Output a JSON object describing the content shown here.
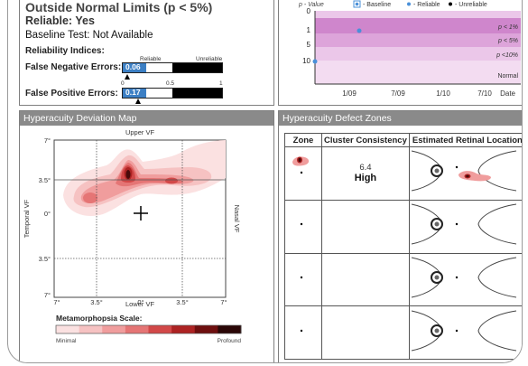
{
  "summary": {
    "title": "Outside Normal Limits (p < 5%)",
    "reliable": "Reliable: Yes",
    "baseline": "Baseline Test: Not Available",
    "reliability_indices": "Reliability Indices:",
    "scale_reliable": "Reliable",
    "scale_unreliable": "Unreliable",
    "tick_0": "0",
    "tick_mid": "0.5",
    "tick_1": "1",
    "fn_label": "False Negative Errors:",
    "fn_value": "0.06",
    "fn_fraction": 0.06,
    "fp_label": "False Positive Errors:",
    "fp_value": "0.17",
    "fp_fraction": 0.17
  },
  "trend": {
    "p_value_label": "p - Value",
    "legend_baseline": "- Baseline",
    "legend_reliable": "- Reliable",
    "legend_unreliable": "- Unreliable",
    "band_1": "p < 1%",
    "band_5": "p < 5%",
    "band_10": "p <10%",
    "band_normal": "Normal",
    "y_ticks": [
      "0",
      "1",
      "5",
      "10"
    ],
    "x_ticks": [
      "1/09",
      "7/09",
      "1/10",
      "7/10"
    ],
    "x_label": "Date",
    "colors": {
      "band_dark": "#cf86cc",
      "band_mid": "#dda4da",
      "band_light": "#ebc7e9",
      "normal": "#f3dcf1",
      "point": "#4a90d9"
    }
  },
  "map": {
    "title": "Hyperacuity Deviation Map",
    "upper": "Upper VF",
    "lower": "Lower VF",
    "temporal": "Temporal VF",
    "nasal": "Nasal VF",
    "y_ticks": [
      "7°",
      "3.5°",
      "0°",
      "3.5°",
      "7°"
    ],
    "x_ticks": [
      "7°",
      "3.5°",
      "0°",
      "3.5°",
      "7°"
    ],
    "scale_title": "Metamorphopsia Scale:",
    "scale_min": "Minimal",
    "scale_max": "Profound",
    "scale_colors": [
      "#fbe1e1",
      "#f6c2c2",
      "#f09d9d",
      "#e57575",
      "#d24848",
      "#ad2323",
      "#6e0f0f",
      "#2a0606"
    ]
  },
  "zones": {
    "title": "Hyperacuity Defect Zones",
    "col_zone": "Zone",
    "col_cluster": "Cluster Consistency",
    "col_location": "Estimated Retinal Location",
    "rows": [
      {
        "cluster_value": "6.4",
        "cluster_level": "High"
      },
      {
        "cluster_value": "",
        "cluster_level": ""
      },
      {
        "cluster_value": "",
        "cluster_level": ""
      },
      {
        "cluster_value": "",
        "cluster_level": ""
      }
    ]
  }
}
